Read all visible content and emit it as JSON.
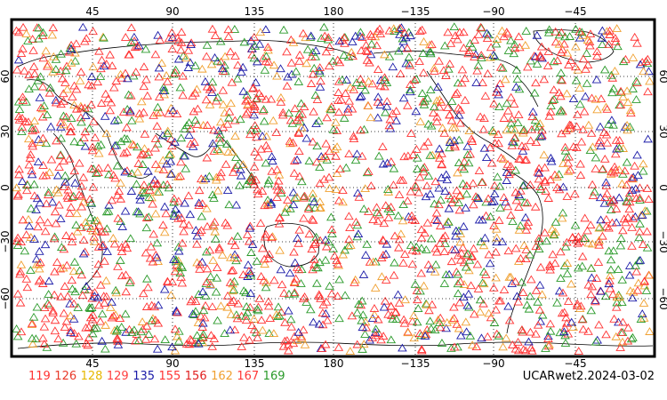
{
  "figure": {
    "axes": {
      "lon_ticks": [
        "45",
        "90",
        "135",
        "180",
        "−135",
        "−90",
        "−45"
      ],
      "lat_ticks": [
        "60",
        "30",
        "0",
        "−30",
        "−60"
      ]
    },
    "footer_label": "UCARwet2.2024-03-02",
    "legend": [
      {
        "label": "119",
        "color": "#ff3333"
      },
      {
        "label": "126",
        "color": "#e83a2a"
      },
      {
        "label": "128",
        "color": "#e6b800"
      },
      {
        "label": "129",
        "color": "#ff4040"
      },
      {
        "label": "135",
        "color": "#1a1aa8"
      },
      {
        "label": "155",
        "color": "#ff3333"
      },
      {
        "label": "156",
        "color": "#e02020"
      },
      {
        "label": "162",
        "color": "#f0a030"
      },
      {
        "label": "167",
        "color": "#ff3838"
      },
      {
        "label": "169",
        "color": "#2a9a2a"
      }
    ],
    "colors": {
      "red": "#ff3333",
      "green": "#2a9a2a",
      "blue": "#1a1aa8",
      "orange": "#f0a030",
      "coastline": "#000000",
      "grid": "#000000"
    }
  }
}
